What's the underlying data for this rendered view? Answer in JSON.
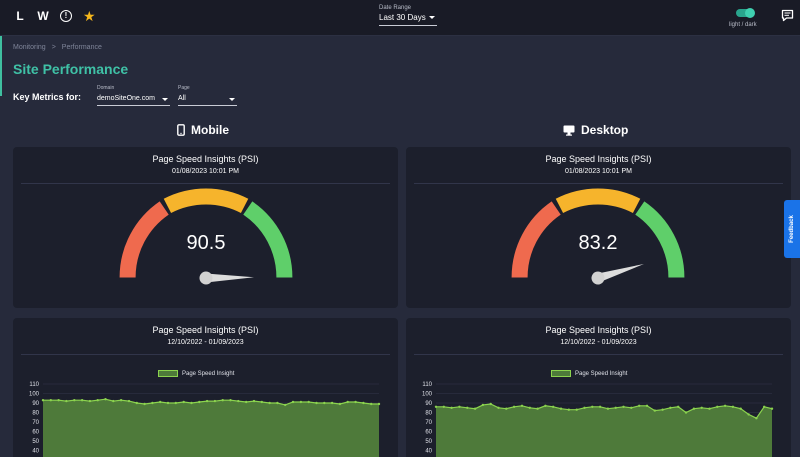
{
  "topbar": {
    "icons": [
      "L",
      "W"
    ],
    "info_icon": "info-circle-icon",
    "star_icon": "star-icon",
    "date_range": {
      "label": "Date Range",
      "value": "Last 30 Days"
    },
    "theme_label": "light / dark",
    "theme_dark": true,
    "chat_icon": "chat-bubble-icon"
  },
  "breadcrumb": {
    "items": [
      "Monitoring",
      "Performance"
    ],
    "separator": ">"
  },
  "page_title": "Site Performance",
  "filters": {
    "label": "Key Metrics for:",
    "domain": {
      "label": "Domain",
      "value": "demoSiteOne.com"
    },
    "page": {
      "label": "Page",
      "value": "All"
    }
  },
  "sections": {
    "mobile": {
      "title": "Mobile",
      "icon": "mobile-phone-icon"
    },
    "desktop": {
      "title": "Desktop",
      "icon": "desktop-monitor-icon"
    }
  },
  "gauges": {
    "mobile": {
      "title": "Page Speed Insights (PSI)",
      "timestamp": "01/08/2023 10:01 PM",
      "value": "90.5",
      "score": 90.5
    },
    "desktop": {
      "title": "Page Speed Insights (PSI)",
      "timestamp": "01/08/2023 10:01 PM",
      "value": "83.2",
      "score": 83.2
    }
  },
  "gauge_colors": {
    "poor": "#ef6a4e",
    "average": "#f6b42c",
    "good": "#5fcf6a",
    "needle": "#dddddd"
  },
  "feedback": {
    "label": "Feedback",
    "icon": "thumbs-icon"
  },
  "charts": {
    "mobile": {
      "title": "Page Speed Insights (PSI)",
      "range": "12/10/2022 - 01/09/2023"
    },
    "desktop": {
      "title": "Page Speed Insights (PSI)",
      "range": "12/10/2022 - 01/09/2023"
    }
  },
  "chart_data": [
    {
      "type": "area",
      "title": "Page Speed Insights (PSI)",
      "subtitle": "12/10/2022 - 01/09/2023",
      "series": [
        {
          "name": "Page Speed Insight",
          "values": [
            93,
            93,
            93,
            92,
            93,
            93,
            92,
            93,
            94,
            92,
            93,
            92,
            90,
            89,
            90,
            91,
            90,
            90,
            91,
            90,
            91,
            92,
            92,
            93,
            93,
            92,
            91,
            92,
            91,
            90,
            90,
            88,
            91,
            91,
            91,
            90,
            90,
            90,
            89,
            91,
            91,
            90,
            89,
            89
          ]
        }
      ],
      "ylim": [
        40,
        110
      ],
      "yticks": [
        40,
        50,
        60,
        70,
        80,
        90,
        100,
        110
      ],
      "legend": "top",
      "color": "#8bd34e",
      "fill": "#4e7a3a"
    },
    {
      "type": "area",
      "title": "Page Speed Insights (PSI)",
      "subtitle": "12/10/2022 - 01/09/2023",
      "series": [
        {
          "name": "Page Speed Insight",
          "values": [
            86,
            86,
            85,
            86,
            85,
            84,
            88,
            89,
            85,
            84,
            86,
            87,
            85,
            84,
            87,
            86,
            84,
            83,
            83,
            85,
            86,
            86,
            84,
            85,
            86,
            85,
            87,
            87,
            82,
            83,
            85,
            86,
            80,
            84,
            85,
            84,
            86,
            87,
            86,
            84,
            78,
            74,
            86,
            84
          ]
        }
      ],
      "ylim": [
        40,
        110
      ],
      "yticks": [
        40,
        50,
        60,
        70,
        80,
        90,
        100,
        110
      ],
      "legend": "top",
      "color": "#8bd34e",
      "fill": "#4e7a3a"
    }
  ]
}
